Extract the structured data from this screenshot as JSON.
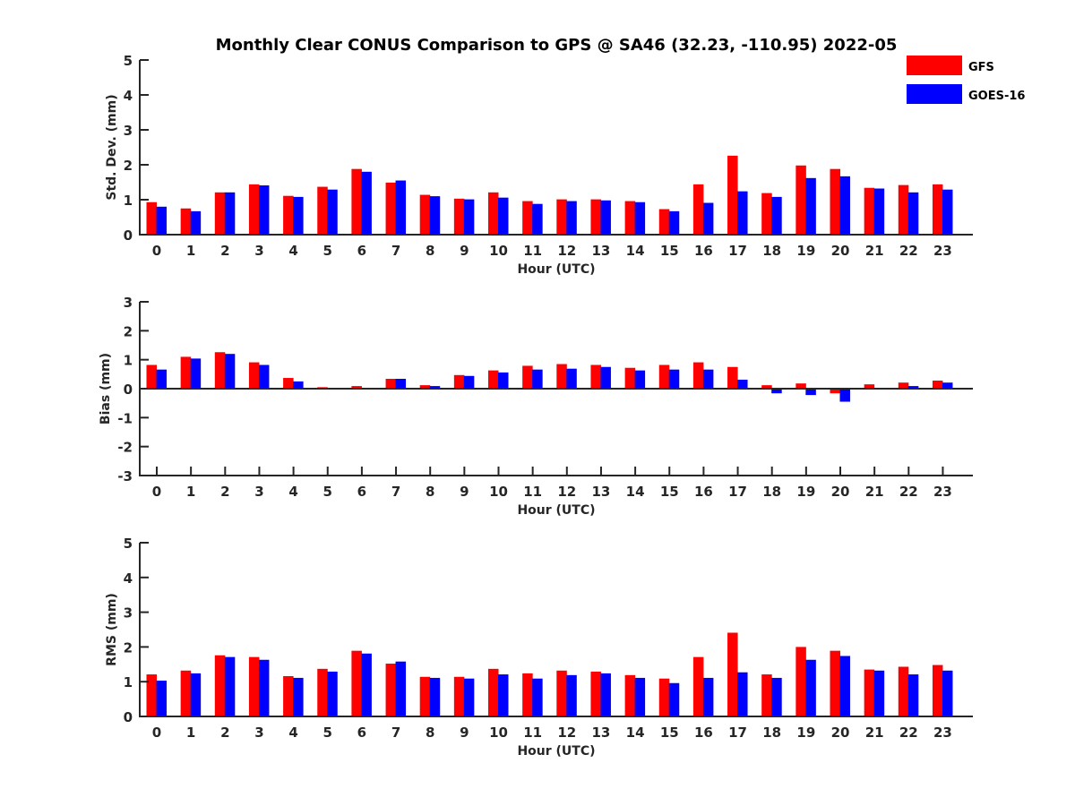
{
  "title": "Monthly Clear CONUS Comparison to GPS @ SA46 (32.23, -110.95) 2022-05",
  "legend": {
    "position": "top-right",
    "items": [
      {
        "label": "GFS",
        "color": "#ff0000"
      },
      {
        "label": "GOES-16",
        "color": "#0000ff"
      }
    ]
  },
  "chart_data": [
    {
      "type": "bar",
      "title": "Monthly Clear CONUS Comparison to GPS @ SA46 (32.23, -110.95) 2022-05",
      "xlabel": "Hour (UTC)",
      "ylabel": "Std. Dev. (mm)",
      "ylim": [
        0,
        5
      ],
      "yticks": [
        "0",
        "1",
        "2",
        "3",
        "4",
        "5"
      ],
      "yticks_values": [
        0,
        1,
        2,
        3,
        4,
        5
      ],
      "categories": [
        "0",
        "1",
        "2",
        "3",
        "4",
        "5",
        "6",
        "7",
        "8",
        "9",
        "10",
        "11",
        "12",
        "13",
        "14",
        "15",
        "16",
        "17",
        "18",
        "19",
        "20",
        "21",
        "22",
        "23"
      ],
      "grid": false,
      "series": [
        {
          "name": "GFS",
          "color": "#ff0000",
          "values": [
            0.93,
            0.75,
            1.21,
            1.44,
            1.11,
            1.37,
            1.88,
            1.49,
            1.14,
            1.03,
            1.21,
            0.96,
            1.01,
            1.01,
            0.96,
            0.73,
            1.44,
            2.26,
            1.19,
            1.98,
            1.88,
            1.34,
            1.42,
            1.44
          ]
        },
        {
          "name": "GOES-16",
          "color": "#0000ff",
          "values": [
            0.8,
            0.67,
            1.21,
            1.41,
            1.08,
            1.29,
            1.8,
            1.55,
            1.1,
            1.01,
            1.06,
            0.88,
            0.96,
            0.98,
            0.93,
            0.67,
            0.91,
            1.24,
            1.08,
            1.62,
            1.67,
            1.32,
            1.21,
            1.29
          ]
        }
      ]
    },
    {
      "type": "bar",
      "title": "",
      "xlabel": "Hour (UTC)",
      "ylabel": "Bias (mm)",
      "ylim": [
        -3,
        3
      ],
      "yticks": [
        "-3",
        "-2",
        "-1",
        "0",
        "1",
        "2",
        "3"
      ],
      "yticks_values": [
        -3,
        -2,
        -1,
        0,
        1,
        2,
        3
      ],
      "categories": [
        "0",
        "1",
        "2",
        "3",
        "4",
        "5",
        "6",
        "7",
        "8",
        "9",
        "10",
        "11",
        "12",
        "13",
        "14",
        "15",
        "16",
        "17",
        "18",
        "19",
        "20",
        "21",
        "22",
        "23"
      ],
      "grid": false,
      "series": [
        {
          "name": "GFS",
          "color": "#ff0000",
          "values": [
            0.82,
            1.1,
            1.26,
            0.91,
            0.37,
            0.05,
            0.09,
            0.34,
            0.12,
            0.47,
            0.63,
            0.79,
            0.85,
            0.82,
            0.72,
            0.82,
            0.91,
            0.75,
            0.12,
            0.18,
            -0.16,
            0.15,
            0.21,
            0.28
          ]
        },
        {
          "name": "GOES-16",
          "color": "#0000ff",
          "values": [
            0.66,
            1.04,
            1.2,
            0.82,
            0.25,
            -0.03,
            0.02,
            0.34,
            0.09,
            0.44,
            0.56,
            0.66,
            0.69,
            0.75,
            0.63,
            0.66,
            0.66,
            0.31,
            -0.16,
            -0.22,
            -0.45,
            0.0,
            0.09,
            0.21
          ]
        }
      ]
    },
    {
      "type": "bar",
      "title": "",
      "xlabel": "Hour (UTC)",
      "ylabel": "RMS (mm)",
      "ylim": [
        0,
        5
      ],
      "yticks": [
        "0",
        "1",
        "2",
        "3",
        "4",
        "5"
      ],
      "yticks_values": [
        0,
        1,
        2,
        3,
        4,
        5
      ],
      "categories": [
        "0",
        "1",
        "2",
        "3",
        "4",
        "5",
        "6",
        "7",
        "8",
        "9",
        "10",
        "11",
        "12",
        "13",
        "14",
        "15",
        "16",
        "17",
        "18",
        "19",
        "20",
        "21",
        "22",
        "23"
      ],
      "grid": false,
      "series": [
        {
          "name": "GFS",
          "color": "#ff0000",
          "values": [
            1.21,
            1.32,
            1.76,
            1.71,
            1.16,
            1.37,
            1.89,
            1.52,
            1.14,
            1.14,
            1.37,
            1.24,
            1.32,
            1.29,
            1.19,
            1.09,
            1.71,
            2.41,
            1.21,
            2.0,
            1.89,
            1.35,
            1.43,
            1.48
          ]
        },
        {
          "name": "GOES-16",
          "color": "#0000ff",
          "values": [
            1.03,
            1.24,
            1.71,
            1.63,
            1.11,
            1.29,
            1.81,
            1.58,
            1.11,
            1.09,
            1.21,
            1.09,
            1.19,
            1.24,
            1.11,
            0.96,
            1.11,
            1.27,
            1.11,
            1.63,
            1.74,
            1.32,
            1.21,
            1.32
          ]
        }
      ]
    }
  ]
}
